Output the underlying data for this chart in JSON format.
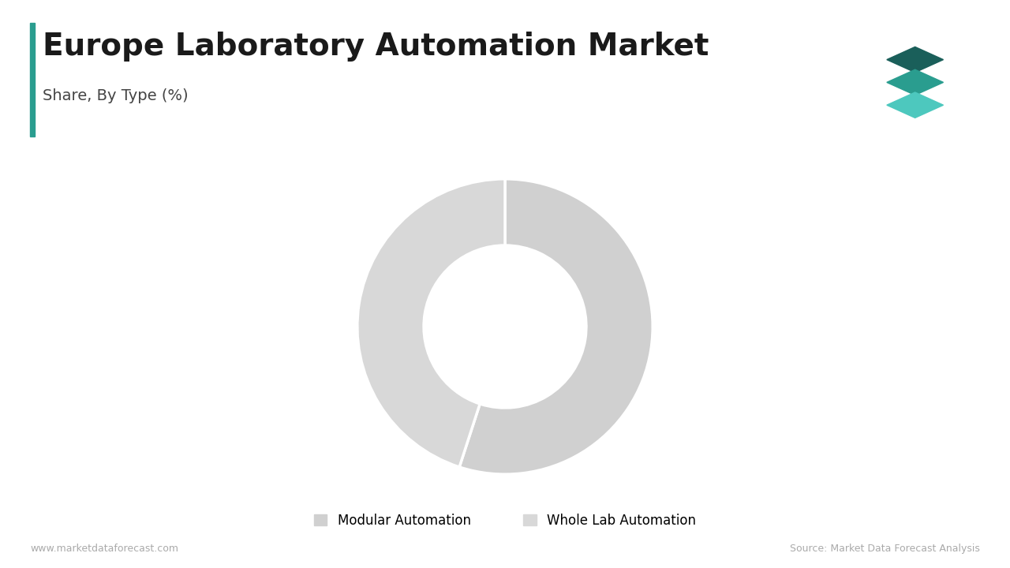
{
  "title": "Europe Laboratory Automation Market",
  "subtitle": "Share, By Type (%)",
  "segments": [
    "Modular Automation",
    "Whole Lab Automation"
  ],
  "values": [
    55,
    45
  ],
  "colors": [
    "#d0d0d0",
    "#d8d8d8"
  ],
  "donut_hole": 0.55,
  "legend_labels": [
    "Modular Automation",
    "Whole Lab Automation"
  ],
  "legend_colors": [
    "#d0d0d0",
    "#d8d8d8"
  ],
  "footer_left": "www.marketdataforecast.com",
  "footer_right": "Source: Market Data Forecast Analysis",
  "background_color": "#ffffff",
  "title_color": "#1a1a1a",
  "subtitle_color": "#444444",
  "accent_color": "#2a9d8f",
  "title_fontsize": 28,
  "subtitle_fontsize": 14,
  "footer_fontsize": 9,
  "legend_fontsize": 12,
  "logo_colors": [
    "#1a5f5a",
    "#2a9d8f",
    "#4dc8be"
  ]
}
